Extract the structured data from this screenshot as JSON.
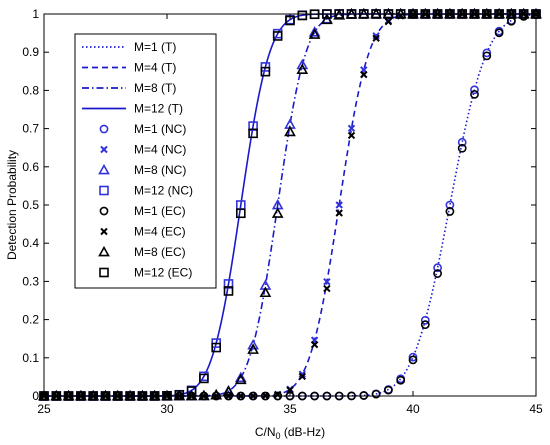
{
  "chart_data": {
    "type": "line",
    "title": "",
    "xlabel_main": "C/N",
    "xlabel_sub": "0",
    "xlabel_rest": " (dB-Hz)",
    "ylabel": "Detection Probability",
    "xlim": [
      25,
      45
    ],
    "ylim": [
      0,
      1
    ],
    "xticks": [
      "25",
      "30",
      "35",
      "40",
      "45"
    ],
    "yticks": [
      "0",
      "0.1",
      "0.2",
      "0.3",
      "0.4",
      "0.5",
      "0.6",
      "0.7",
      "0.8",
      "0.9",
      "1"
    ],
    "grid": false,
    "legend_position": "top-left",
    "colors": {
      "theory": "#1a1acc",
      "nc": "#3333dd",
      "ec": "#000000"
    },
    "series": [
      {
        "name": "M=1 (T)",
        "kind": "line",
        "style": "dotted",
        "mu": 41.5,
        "sigma": 1.18
      },
      {
        "name": "M=4 (T)",
        "kind": "line",
        "style": "dashed",
        "mu": 37.0,
        "sigma": 0.95
      },
      {
        "name": "M=8 (T)",
        "kind": "line",
        "style": "dashdot",
        "mu": 34.5,
        "sigma": 0.9
      },
      {
        "name": "M=12 (T)",
        "kind": "line",
        "style": "solid",
        "mu": 33.0,
        "sigma": 0.92
      },
      {
        "name": "M=1 (NC)",
        "kind": "marker",
        "marker": "circle",
        "mu": 41.5,
        "sigma": 1.18
      },
      {
        "name": "M=4 (NC)",
        "kind": "marker",
        "marker": "x",
        "mu": 37.0,
        "sigma": 0.95
      },
      {
        "name": "M=8 (NC)",
        "kind": "marker",
        "marker": "triangle",
        "mu": 34.5,
        "sigma": 0.9
      },
      {
        "name": "M=12 (NC)",
        "kind": "marker",
        "marker": "square",
        "mu": 33.0,
        "sigma": 0.92
      },
      {
        "name": "M=1 (EC)",
        "kind": "marker",
        "marker": "circle",
        "mu": 41.55,
        "sigma": 1.18
      },
      {
        "name": "M=4 (EC)",
        "kind": "marker",
        "marker": "x",
        "mu": 37.05,
        "sigma": 0.95
      },
      {
        "name": "M=8 (EC)",
        "kind": "marker",
        "marker": "triangle",
        "mu": 34.55,
        "sigma": 0.9
      },
      {
        "name": "M=12 (EC)",
        "kind": "marker",
        "marker": "square",
        "mu": 33.05,
        "sigma": 0.92
      }
    ]
  }
}
